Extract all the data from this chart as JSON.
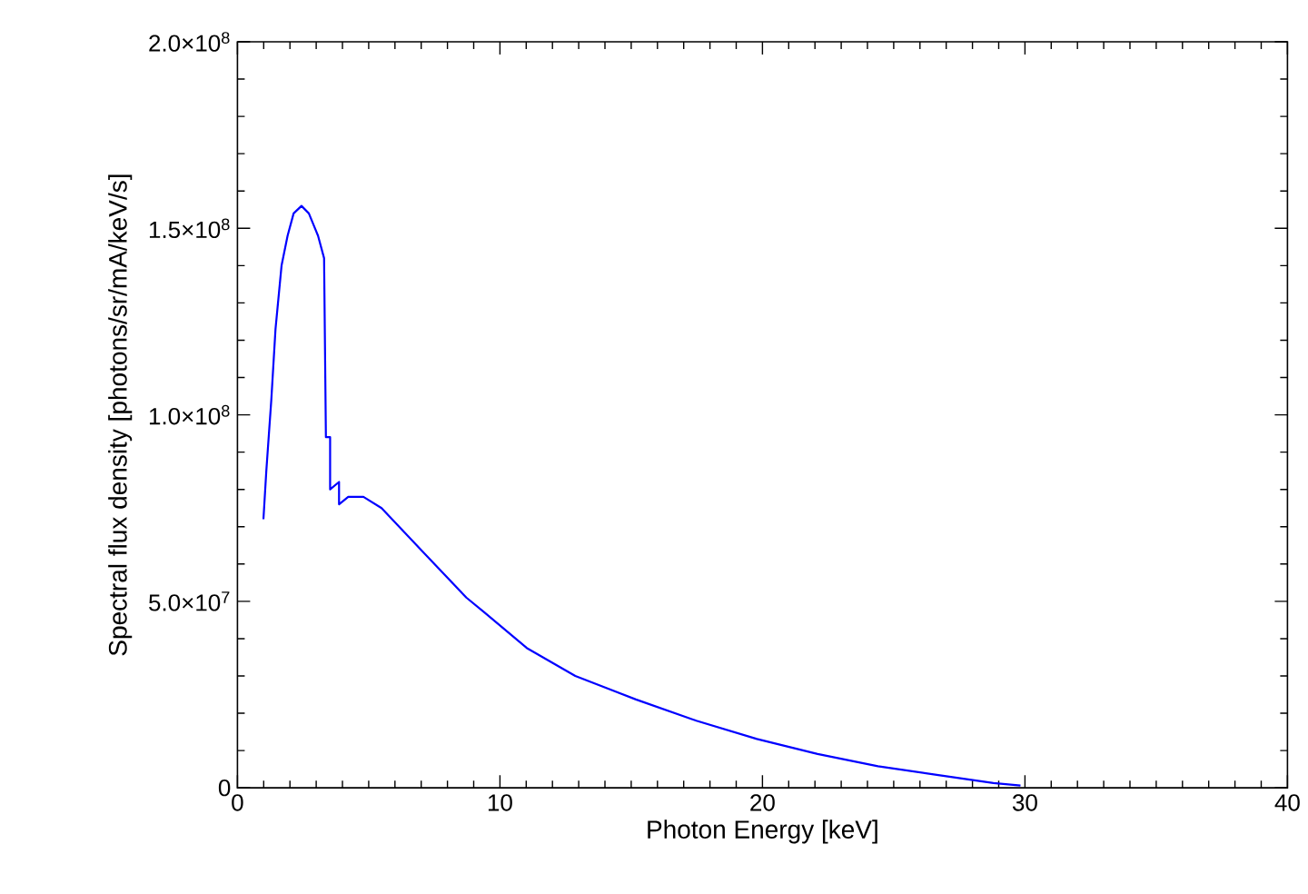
{
  "chart_data": {
    "type": "line",
    "xlabel": "Photon Energy [keV]",
    "ylabel": "Spectral flux density [photons/sr/mA/keV/s]",
    "xlim": [
      0,
      40
    ],
    "xticks": [
      0,
      10,
      20,
      30,
      40
    ],
    "ylim": [
      0,
      200000000
    ],
    "yticks": [
      0,
      {
        "value": 50000000,
        "label": "5.0×10$^{7}$"
      },
      {
        "value": 100000000,
        "label": "1.0×10$^{8}$"
      },
      {
        "value": 150000000,
        "label": "1.5×10$^{8}$"
      },
      {
        "value": 200000000,
        "label": "2.0×10$^{8}$"
      }
    ],
    "marker": "none",
    "line_style": "solid",
    "series": [
      {
        "color": "#0000ff",
        "x": [
          0.99,
          1.1,
          1.29,
          1.45,
          1.68,
          1.91,
          2.14,
          2.44,
          2.72,
          3.07,
          3.3,
          3.37,
          3.53,
          3.53,
          3.87,
          3.87,
          4.22,
          4.8,
          5.49,
          7.1,
          8.72,
          9.41,
          11.02,
          12.87,
          15.18,
          17.48,
          19.79,
          22.1,
          24.4,
          26.7,
          28.8,
          29.83
        ],
        "values": [
          72000000,
          85000000,
          104000000,
          123000000,
          140000000,
          148000000,
          154000000,
          156000000,
          154000000,
          148000000,
          142000000,
          94000000,
          94000000,
          80000000,
          82000000,
          76000000,
          78000000,
          78000000,
          75000000,
          63000000,
          51000000,
          47000000,
          37500000,
          30000000,
          23700000,
          18000000,
          13100000,
          9100000,
          5800000,
          3400000,
          1300000,
          600000
        ]
      }
    ]
  }
}
